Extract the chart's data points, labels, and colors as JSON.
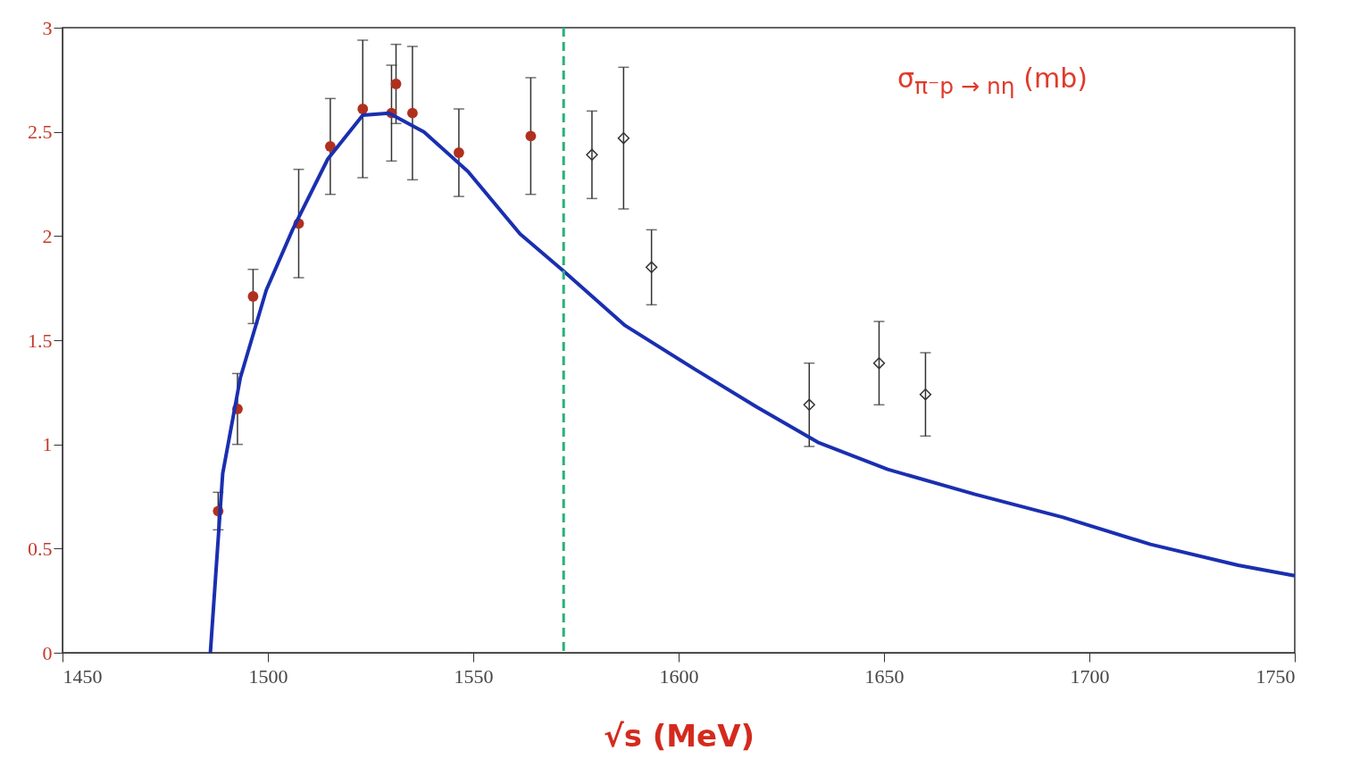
{
  "chart_data": {
    "type": "scatter",
    "xlabel": "√s (MeV)",
    "annotations": [
      "σ$_{π⁻p → nη}$ (mb)"
    ],
    "xlim": [
      1450,
      1750
    ],
    "xticks": [
      1450,
      1500,
      1550,
      1600,
      1650,
      1700,
      1750
    ],
    "ylim": [
      0,
      3
    ],
    "yticks": [
      0,
      0.5,
      1,
      1.5,
      2,
      2.5,
      3
    ],
    "series": [
      {
        "color": "#b0301f",
        "marker": "circle",
        "x": [
          1487.9,
          1492.6,
          1496.4,
          1507.5,
          1515.2,
          1523.1,
          1530.1,
          1531.2,
          1535.2,
          1546.5,
          1564.0
        ],
        "values": [
          0.68,
          1.17,
          1.71,
          2.06,
          2.43,
          2.61,
          2.59,
          2.73,
          2.59,
          2.4,
          2.48
        ],
        "errors": [
          0.09,
          0.17,
          0.13,
          0.26,
          0.23,
          0.33,
          0.23,
          0.19,
          0.32,
          0.21,
          0.28
        ]
      },
      {
        "color": "#333333",
        "marker": "diamond",
        "x": [
          1578.9,
          1586.6,
          1593.4,
          1631.8,
          1648.8,
          1660.1
        ],
        "values": [
          2.39,
          2.47,
          1.85,
          1.19,
          1.39,
          1.24
        ],
        "errors": [
          0.21,
          0.34,
          0.18,
          0.2,
          0.2,
          0.2
        ]
      },
      {
        "type": "line",
        "color": "#1a2fb0",
        "x": [
          1486,
          1489,
          1493.3,
          1499.6,
          1506,
          1514.6,
          1523.1,
          1529.5,
          1538,
          1548.7,
          1561.4,
          1572.1,
          1587,
          1604,
          1619,
          1633.9,
          1650.9,
          1672.2,
          1693.6,
          1714.9,
          1736.2,
          1750
        ],
        "values": [
          0,
          0.86,
          1.32,
          1.74,
          2.03,
          2.37,
          2.58,
          2.59,
          2.5,
          2.31,
          2.01,
          1.83,
          1.57,
          1.36,
          1.18,
          1.01,
          0.88,
          0.76,
          0.65,
          0.52,
          0.42,
          0.37
        ]
      }
    ],
    "ref_lines": [
      {
        "axis": "x",
        "value": 1572,
        "color": "#2ab07a",
        "line_style": "dashed"
      }
    ]
  }
}
